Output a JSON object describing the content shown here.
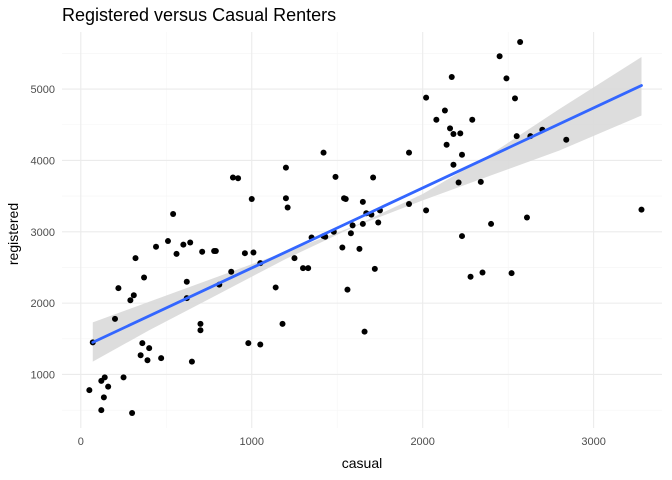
{
  "chart_data": {
    "type": "scatter",
    "title": "Registered versus Casual Renters",
    "xlabel": "casual",
    "ylabel": "registered",
    "xlim": [
      -110,
      3400
    ],
    "ylim": [
      250,
      5800
    ],
    "x_ticks": [
      0,
      1000,
      2000,
      3000
    ],
    "y_ticks": [
      1000,
      2000,
      3000,
      4000,
      5000
    ],
    "x_tick_labels": [
      "0",
      "1000",
      "2000",
      "3000"
    ],
    "y_tick_labels": [
      "1000",
      "2000",
      "3000",
      "4000",
      "5000"
    ],
    "grid": true,
    "colors": {
      "points": "#000000",
      "trend_line": "#3366ff",
      "confidence_band": "#d9d9d9",
      "grid_major": "#ebebeb",
      "grid_minor": "#f5f5f5"
    },
    "trend": {
      "method": "linear fit with confidence band",
      "line": [
        [
          70,
          1450
        ],
        [
          3280,
          5050
        ]
      ],
      "band_upper": [
        [
          70,
          1730
        ],
        [
          400,
          2020
        ],
        [
          800,
          2370
        ],
        [
          1200,
          2720
        ],
        [
          1600,
          3080
        ],
        [
          2000,
          3530
        ],
        [
          2400,
          4090
        ],
        [
          2800,
          4720
        ],
        [
          3280,
          5450
        ]
      ],
      "band_lower": [
        [
          70,
          1180
        ],
        [
          400,
          1620
        ],
        [
          800,
          2120
        ],
        [
          1200,
          2620
        ],
        [
          1600,
          3070
        ],
        [
          2000,
          3440
        ],
        [
          2400,
          3790
        ],
        [
          2800,
          4140
        ],
        [
          3280,
          4630
        ]
      ]
    },
    "points": [
      [
        50,
        780
      ],
      [
        70,
        1450
      ],
      [
        120,
        500
      ],
      [
        120,
        910
      ],
      [
        135,
        680
      ],
      [
        140,
        960
      ],
      [
        160,
        830
      ],
      [
        200,
        1780
      ],
      [
        220,
        2210
      ],
      [
        250,
        960
      ],
      [
        290,
        2040
      ],
      [
        300,
        460
      ],
      [
        310,
        2110
      ],
      [
        320,
        2630
      ],
      [
        350,
        1270
      ],
      [
        360,
        1440
      ],
      [
        370,
        2360
      ],
      [
        390,
        1200
      ],
      [
        400,
        1370
      ],
      [
        440,
        2790
      ],
      [
        470,
        1230
      ],
      [
        510,
        2870
      ],
      [
        540,
        3250
      ],
      [
        560,
        2690
      ],
      [
        600,
        2820
      ],
      [
        620,
        2300
      ],
      [
        620,
        2070
      ],
      [
        640,
        2850
      ],
      [
        650,
        1180
      ],
      [
        700,
        1620
      ],
      [
        700,
        1710
      ],
      [
        710,
        2720
      ],
      [
        780,
        2730
      ],
      [
        790,
        2730
      ],
      [
        810,
        2260
      ],
      [
        880,
        2440
      ],
      [
        890,
        3760
      ],
      [
        920,
        3750
      ],
      [
        960,
        2700
      ],
      [
        980,
        1440
      ],
      [
        1000,
        3460
      ],
      [
        1010,
        2710
      ],
      [
        1050,
        1420
      ],
      [
        1050,
        2560
      ],
      [
        1140,
        2220
      ],
      [
        1180,
        1710
      ],
      [
        1200,
        3900
      ],
      [
        1200,
        3470
      ],
      [
        1210,
        3340
      ],
      [
        1250,
        2630
      ],
      [
        1300,
        2490
      ],
      [
        1330,
        2490
      ],
      [
        1350,
        2920
      ],
      [
        1420,
        2940
      ],
      [
        1420,
        4110
      ],
      [
        1430,
        2930
      ],
      [
        1480,
        3000
      ],
      [
        1490,
        3770
      ],
      [
        1530,
        2780
      ],
      [
        1540,
        3470
      ],
      [
        1550,
        3460
      ],
      [
        1560,
        2190
      ],
      [
        1580,
        2980
      ],
      [
        1590,
        3090
      ],
      [
        1630,
        2760
      ],
      [
        1650,
        3420
      ],
      [
        1650,
        3110
      ],
      [
        1660,
        1600
      ],
      [
        1670,
        3260
      ],
      [
        1700,
        3240
      ],
      [
        1710,
        3760
      ],
      [
        1720,
        2480
      ],
      [
        1740,
        3130
      ],
      [
        1750,
        3300
      ],
      [
        1920,
        3390
      ],
      [
        1920,
        4110
      ],
      [
        2020,
        3300
      ],
      [
        2020,
        4880
      ],
      [
        2080,
        4570
      ],
      [
        2130,
        4700
      ],
      [
        2140,
        4220
      ],
      [
        2160,
        4450
      ],
      [
        2170,
        5170
      ],
      [
        2180,
        3940
      ],
      [
        2180,
        4370
      ],
      [
        2210,
        3690
      ],
      [
        2220,
        4380
      ],
      [
        2230,
        2940
      ],
      [
        2230,
        4080
      ],
      [
        2280,
        2370
      ],
      [
        2290,
        4570
      ],
      [
        2340,
        3700
      ],
      [
        2350,
        2430
      ],
      [
        2400,
        3110
      ],
      [
        2450,
        5460
      ],
      [
        2490,
        5150
      ],
      [
        2520,
        2420
      ],
      [
        2540,
        4870
      ],
      [
        2550,
        4340
      ],
      [
        2570,
        5660
      ],
      [
        2610,
        3200
      ],
      [
        2630,
        4340
      ],
      [
        2700,
        4430
      ],
      [
        2840,
        4290
      ],
      [
        3280,
        3310
      ]
    ]
  }
}
